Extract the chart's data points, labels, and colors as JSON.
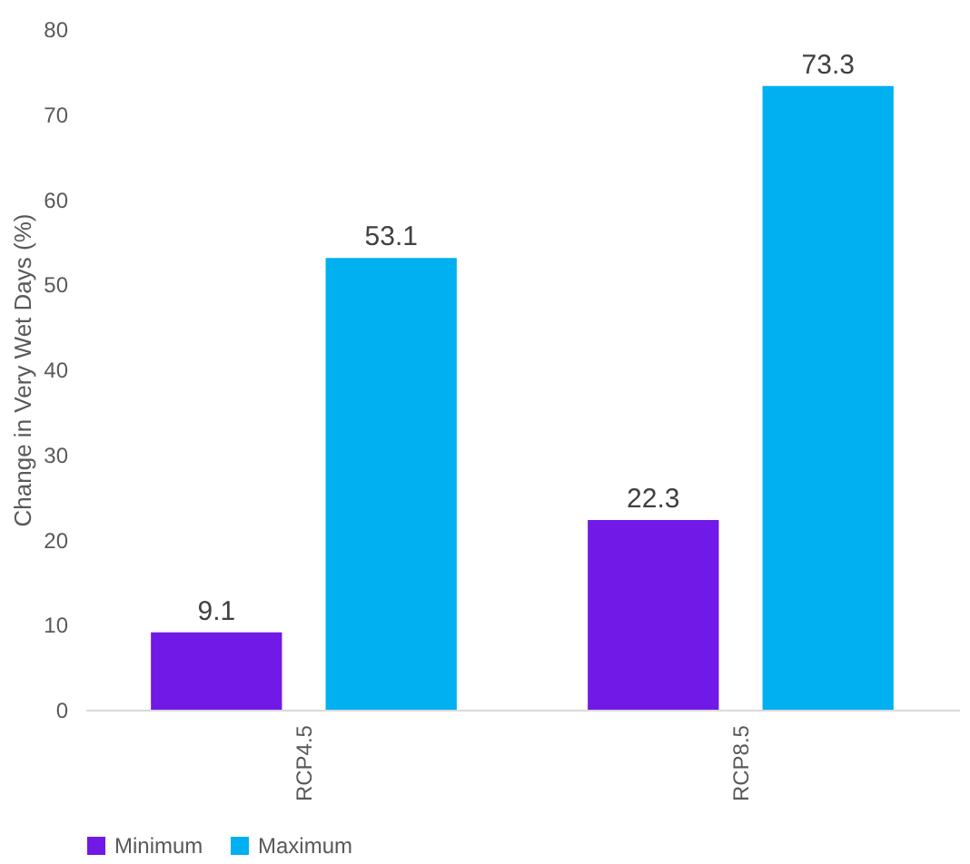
{
  "chart_data": {
    "type": "bar",
    "ylabel": "Change in Very Wet Days (%)",
    "categories": [
      "RCP4.5",
      "RCP8.5"
    ],
    "series": [
      {
        "name": "Minimum",
        "color": "#7119e6",
        "values": [
          9.1,
          22.3
        ]
      },
      {
        "name": "Maximum",
        "color": "#00b0f0",
        "values": [
          53.1,
          73.3
        ]
      }
    ],
    "ylim": [
      0,
      80
    ],
    "yticks": [
      0,
      10,
      20,
      30,
      40,
      50,
      60,
      70,
      80
    ],
    "grid": false,
    "legend": "bottom",
    "data_labels": true
  }
}
